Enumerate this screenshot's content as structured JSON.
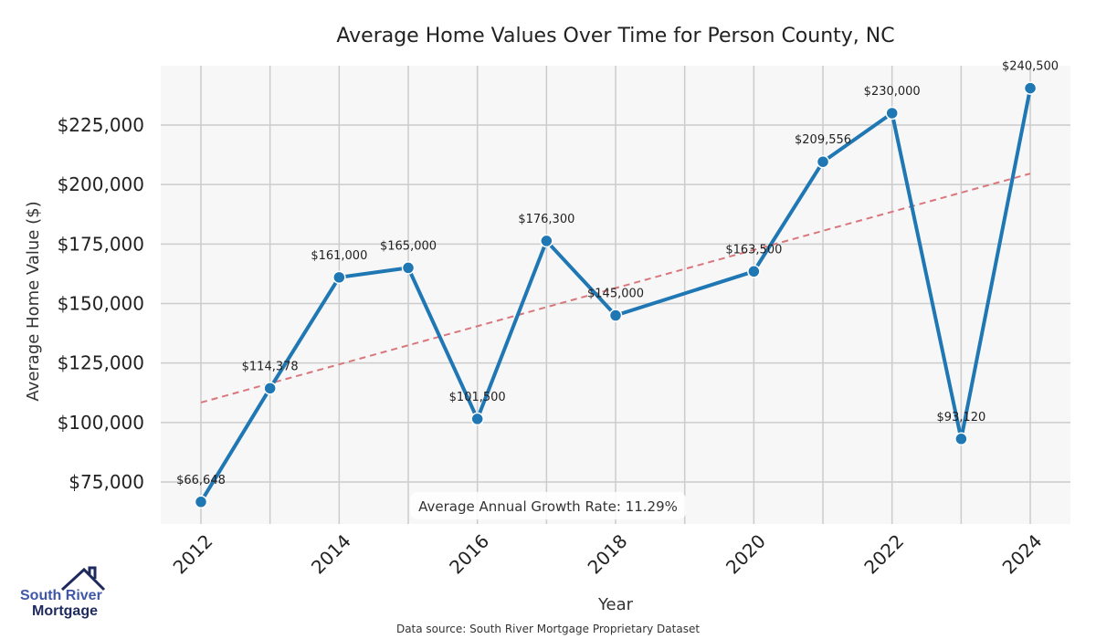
{
  "chart_data": {
    "type": "line",
    "title": "Average Home Values Over Time for Person County, NC",
    "xlabel": "Year",
    "ylabel": "Average Home Value ($)",
    "x": [
      2012,
      2013,
      2014,
      2015,
      2016,
      2017,
      2018,
      2020,
      2021,
      2022,
      2023,
      2024
    ],
    "values": [
      66648,
      114378,
      161000,
      165000,
      101500,
      176300,
      145000,
      163500,
      209556,
      230000,
      93120,
      240500
    ],
    "data_labels": [
      "$66,648",
      "$114,378",
      "$161,000",
      "$165,000",
      "$101,500",
      "$176,300",
      "$145,000",
      "$163,500",
      "$209,556",
      "$230,000",
      "$93,120",
      "$240,500"
    ],
    "trend": {
      "x": [
        2012,
        2024
      ],
      "y": [
        108400,
        204600
      ]
    },
    "yticks": [
      75000,
      100000,
      125000,
      150000,
      175000,
      200000,
      225000
    ],
    "ytick_labels": [
      "$75,000",
      "$100,000",
      "$125,000",
      "$150,000",
      "$175,000",
      "$200,000",
      "$225,000"
    ],
    "xticks": [
      2012,
      2014,
      2016,
      2018,
      2020,
      2022,
      2024
    ],
    "xtick_labels": [
      "2012",
      "2014",
      "2016",
      "2018",
      "2020",
      "2022",
      "2024"
    ],
    "xlim": [
      2011.42,
      2024.58
    ],
    "ylim": [
      57000,
      252000
    ],
    "grid": true,
    "annotation": "Average Annual Growth Rate: 11.29%",
    "colors": {
      "line": "#1f77b4",
      "trend": "#d9777c",
      "grid": "#cccccc",
      "bg": "#f7f7f7"
    }
  },
  "source": "Data source: South River Mortgage Proprietary Dataset",
  "logo": {
    "line1": "South River",
    "line2": "Mortgage"
  }
}
